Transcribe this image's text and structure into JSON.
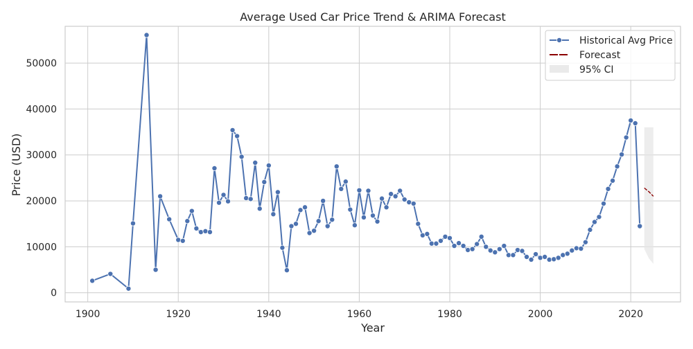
{
  "chart_data": {
    "type": "line",
    "title": "Average Used Car Price Trend & ARIMA Forecast",
    "xlabel": "Year",
    "ylabel": "Price (USD)",
    "xlim": [
      1895,
      2031
    ],
    "ylim": [
      -2000,
      58000
    ],
    "xticks": [
      1900,
      1920,
      1940,
      1960,
      1980,
      2000,
      2020
    ],
    "yticks": [
      0,
      10000,
      20000,
      30000,
      40000,
      50000
    ],
    "grid": true,
    "legend_position": "top-right",
    "colors": {
      "historical": "#4c72b0",
      "forecast": "#8b0000",
      "ci_fill": "#e5e5e5",
      "grid": "#cccccc",
      "axes_edge": "#cccccc"
    },
    "series": [
      {
        "name": "Historical Avg Price",
        "marker": "circle",
        "x": [
          1901,
          1905,
          1909,
          1910,
          1913,
          1915,
          1916,
          1918,
          1920,
          1921,
          1922,
          1923,
          1924,
          1925,
          1926,
          1927,
          1928,
          1929,
          1930,
          1931,
          1932,
          1933,
          1934,
          1935,
          1936,
          1937,
          1938,
          1939,
          1940,
          1941,
          1942,
          1943,
          1944,
          1945,
          1946,
          1947,
          1948,
          1949,
          1950,
          1951,
          1952,
          1953,
          1954,
          1955,
          1956,
          1957,
          1958,
          1959,
          1960,
          1961,
          1962,
          1963,
          1964,
          1965,
          1966,
          1967,
          1968,
          1969,
          1970,
          1971,
          1972,
          1973,
          1974,
          1975,
          1976,
          1977,
          1978,
          1979,
          1980,
          1981,
          1982,
          1983,
          1984,
          1985,
          1986,
          1987,
          1988,
          1989,
          1990,
          1991,
          1992,
          1993,
          1994,
          1995,
          1996,
          1997,
          1998,
          1999,
          2000,
          2001,
          2002,
          2003,
          2004,
          2005,
          2006,
          2007,
          2008,
          2009,
          2010,
          2011,
          2012,
          2013,
          2014,
          2015,
          2016,
          2017,
          2018,
          2019,
          2020,
          2021,
          2022
        ],
        "y": [
          2600,
          4100,
          900,
          15100,
          56100,
          5000,
          21000,
          16000,
          11500,
          11300,
          15600,
          17800,
          14000,
          13200,
          13400,
          13200,
          27100,
          19600,
          21300,
          19900,
          35400,
          34100,
          29600,
          20600,
          20400,
          28300,
          18300,
          24100,
          27700,
          17100,
          21900,
          9800,
          4900,
          14500,
          15000,
          18000,
          18600,
          13000,
          13500,
          15600,
          20000,
          14500,
          15900,
          27500,
          22600,
          24200,
          18100,
          14700,
          22300,
          16400,
          22200,
          16800,
          15500,
          20500,
          18600,
          21500,
          21000,
          22200,
          20300,
          19700,
          19400,
          15000,
          12500,
          12800,
          10700,
          10700,
          11300,
          12200,
          11900,
          10200,
          10800,
          10200,
          9300,
          9500,
          10600,
          12200,
          10000,
          9200,
          8800,
          9500,
          10200,
          8200,
          8200,
          9300,
          9100,
          7800,
          7200,
          8400,
          7600,
          7800,
          7200,
          7300,
          7600,
          8200,
          8500,
          9200,
          9700,
          9600,
          11000,
          13700,
          15400,
          16500,
          19400,
          22600,
          24400,
          27500,
          30100,
          33800,
          37500,
          36900,
          14500
        ]
      },
      {
        "name": "Forecast",
        "x": [
          2023,
          2024,
          2025
        ],
        "y": [
          22800,
          22000,
          21000
        ]
      }
    ],
    "confidence_interval": {
      "name": "95% CI",
      "x": [
        2023,
        2024,
        2025
      ],
      "lower": [
        9500,
        7500,
        6300
      ],
      "upper": [
        36000,
        36000,
        36000
      ]
    }
  }
}
